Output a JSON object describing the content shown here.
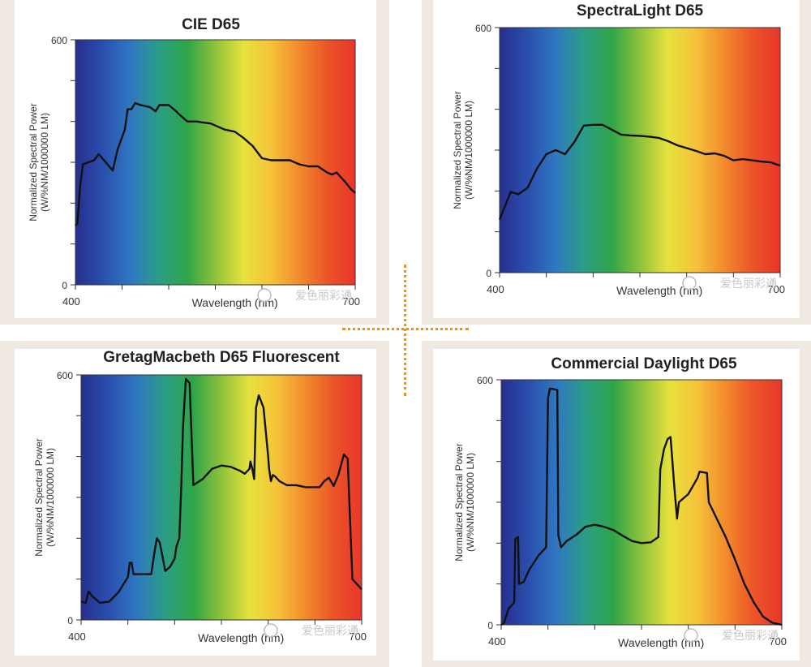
{
  "colors": {
    "frame": "#f0e9e1",
    "dots": "#e8912a",
    "curve": "#111111",
    "spectrum": [
      "#262f8e",
      "#2a4fae",
      "#2f78c2",
      "#2a9e84",
      "#2fa548",
      "#8ec23b",
      "#e6e23c",
      "#f6c23a",
      "#f28a2c",
      "#ec5428",
      "#e8362a"
    ]
  },
  "watermark": {
    "text": "爱色丽彩通"
  },
  "chart_data": [
    {
      "id": "cie-d65",
      "type": "line",
      "title": "CIE D65",
      "xlabel": "Wavelength (nm)",
      "ylabel_line1": "Normalized Spectral Power",
      "ylabel_line2": "(W/%NM/1000000 LM)",
      "xlim": [
        400,
        700
      ],
      "ylim": [
        0,
        600
      ],
      "x_tick_labels": [
        "400",
        "700"
      ],
      "y_tick_labels": [
        "600",
        "0"
      ],
      "x": [
        400,
        402,
        405,
        408,
        420,
        425,
        440,
        445,
        453,
        456,
        460,
        464,
        470,
        480,
        486,
        490,
        500,
        508,
        510,
        520,
        530,
        535,
        545,
        560,
        571,
        580,
        590,
        600,
        610,
        620,
        630,
        640,
        650,
        660,
        670,
        675,
        680,
        690,
        695,
        700
      ],
      "y": [
        145,
        150,
        240,
        295,
        305,
        320,
        280,
        330,
        380,
        430,
        430,
        445,
        440,
        435,
        425,
        440,
        440,
        425,
        420,
        400,
        400,
        398,
        395,
        380,
        375,
        360,
        340,
        310,
        305,
        305,
        305,
        295,
        290,
        290,
        275,
        270,
        275,
        250,
        235,
        225
      ]
    },
    {
      "id": "spectralight-d65",
      "type": "line",
      "title": "SpectraLight D65",
      "xlabel": "Wavelength (nm)",
      "ylabel_line1": "Normalized Spectral Power",
      "ylabel_line2": "(W/%NM/1000000 LM)",
      "xlim": [
        400,
        700
      ],
      "ylim": [
        0,
        600
      ],
      "x_tick_labels": [
        "400",
        "700"
      ],
      "y_tick_labels": [
        "600",
        "0"
      ],
      "x": [
        400,
        412,
        420,
        430,
        440,
        450,
        460,
        470,
        480,
        490,
        500,
        510,
        520,
        530,
        540,
        550,
        560,
        570,
        580,
        590,
        600,
        610,
        620,
        630,
        640,
        650,
        660,
        670,
        680,
        690,
        700
      ],
      "y": [
        130,
        198,
        192,
        208,
        255,
        290,
        300,
        290,
        320,
        360,
        362,
        362,
        350,
        338,
        336,
        335,
        333,
        330,
        322,
        312,
        305,
        298,
        290,
        292,
        286,
        275,
        278,
        275,
        272,
        270,
        262
      ]
    },
    {
      "id": "gretagmacbeth-d65-fluorescent",
      "type": "line",
      "title": "GretagMacbeth D65 Fluorescent",
      "xlabel": "Wavelength (nm)",
      "ylabel_line1": "Normalized Spectral Power",
      "ylabel_line2": "(W/%NM/1000000 LM)",
      "xlim": [
        400,
        700
      ],
      "ylim": [
        0,
        600
      ],
      "x_tick_labels": [
        "400",
        "700"
      ],
      "y_tick_labels": [
        "600",
        "0"
      ],
      "x": [
        400,
        405,
        408,
        412,
        420,
        430,
        440,
        450,
        452,
        454,
        456,
        460,
        475,
        478,
        481,
        484,
        490,
        495,
        500,
        502,
        505,
        507,
        509,
        512,
        516,
        520,
        530,
        540,
        550,
        560,
        570,
        575,
        580,
        581,
        583,
        585,
        587,
        590,
        595,
        600,
        601,
        603,
        605,
        608,
        612,
        620,
        630,
        640,
        650,
        655,
        660,
        665,
        670,
        675,
        678,
        681,
        685,
        690,
        700
      ],
      "y": [
        45,
        42,
        70,
        58,
        42,
        45,
        68,
        105,
        140,
        140,
        112,
        112,
        112,
        160,
        200,
        190,
        120,
        130,
        150,
        180,
        200,
        320,
        475,
        590,
        580,
        330,
        345,
        370,
        378,
        375,
        365,
        358,
        370,
        388,
        370,
        345,
        520,
        550,
        520,
        400,
        370,
        340,
        355,
        350,
        340,
        330,
        330,
        325,
        325,
        325,
        340,
        348,
        328,
        355,
        380,
        405,
        395,
        100,
        75
      ]
    },
    {
      "id": "commercial-daylight-d65",
      "type": "line",
      "title": "Commercial Daylight D65",
      "xlabel": "Wavelength (nm)",
      "ylabel_line1": "Normalized Spectral Power",
      "ylabel_line2": "(W/%NM/1000000 LM)",
      "xlim": [
        400,
        700
      ],
      "ylim": [
        0,
        600
      ],
      "x_tick_labels": [
        "400",
        "700"
      ],
      "y_tick_labels": [
        "600",
        "0"
      ],
      "x": [
        400,
        403,
        408,
        414,
        415,
        418,
        419,
        424,
        430,
        440,
        448,
        450,
        452,
        454,
        460,
        461,
        464,
        470,
        480,
        490,
        500,
        510,
        520,
        530,
        540,
        550,
        560,
        568,
        570,
        574,
        578,
        581,
        585,
        588,
        590,
        600,
        610,
        612,
        620,
        622,
        630,
        640,
        650,
        660,
        670,
        680,
        690,
        700
      ],
      "y": [
        0,
        5,
        40,
        55,
        210,
        215,
        100,
        105,
        135,
        170,
        190,
        555,
        578,
        578,
        575,
        220,
        190,
        205,
        220,
        240,
        245,
        240,
        232,
        218,
        205,
        200,
        202,
        215,
        380,
        430,
        455,
        460,
        340,
        260,
        300,
        320,
        360,
        375,
        372,
        300,
        262,
        215,
        160,
        100,
        55,
        20,
        5,
        0
      ]
    }
  ]
}
